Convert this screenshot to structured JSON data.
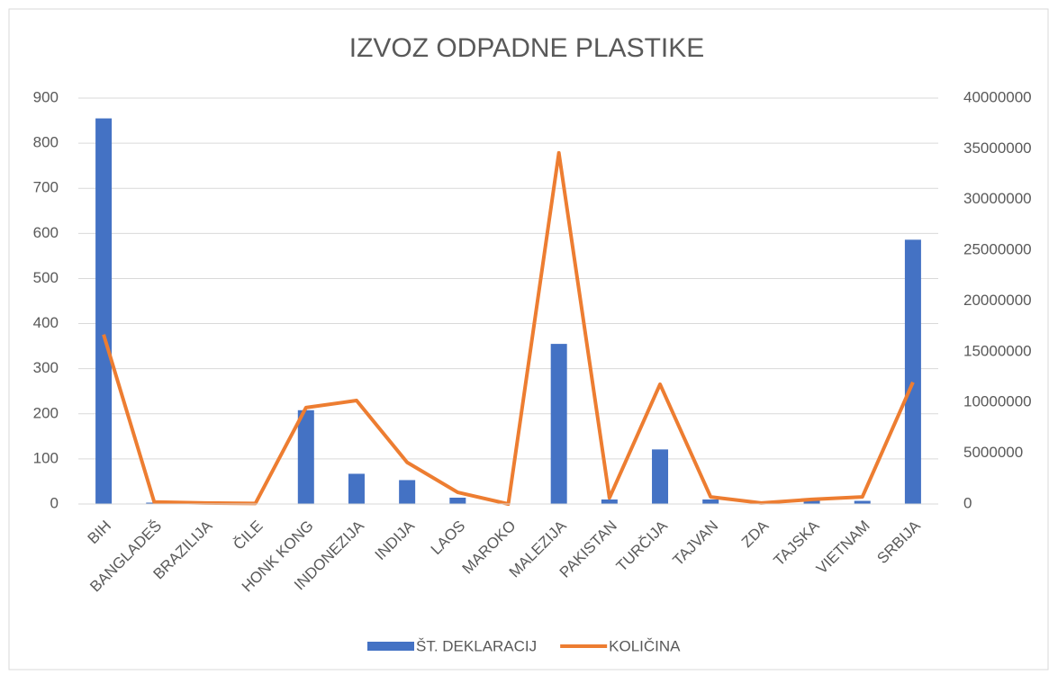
{
  "chart_data": {
    "type": "bar_line",
    "title": "IZVOZ ODPADNE PLASTIKE",
    "categories": [
      "BIH",
      "BANGLADEŠ",
      "BRAZILIJA",
      "ČILE",
      "HONK KONG",
      "INDONEZIJA",
      "INDIJA",
      "LAOS",
      "MAROKO",
      "MALEZIJA",
      "PAKISTAN",
      "TURČIJA",
      "TAJVAN",
      "ZDA",
      "TAJSKA",
      "VIETNAM",
      "SRBIJA"
    ],
    "series": [
      {
        "name": "ŠT. DEKLARACIJ",
        "type": "bar",
        "color": "#4472c4",
        "values": [
          855,
          3,
          1,
          1,
          208,
          67,
          53,
          14,
          1,
          355,
          10,
          121,
          10,
          2,
          13,
          7,
          586
        ]
      },
      {
        "name": "KOLIČINA",
        "type": "line",
        "axis": "y2",
        "color": "#ed7d31",
        "values": [
          16700000,
          200000,
          100000,
          50000,
          9500000,
          10200000,
          4100000,
          1150000,
          0,
          34600000,
          600000,
          11800000,
          700000,
          100000,
          450000,
          700000,
          12000000
        ]
      }
    ],
    "ylim": [
      0,
      900
    ],
    "yticks": [
      0,
      100,
      200,
      300,
      400,
      500,
      600,
      700,
      800,
      900
    ],
    "y2lim": [
      0,
      40000000
    ],
    "y2ticks": [
      0,
      5000000,
      10000000,
      15000000,
      20000000,
      25000000,
      30000000,
      35000000,
      40000000
    ],
    "grid": true,
    "legend": "bottom"
  }
}
